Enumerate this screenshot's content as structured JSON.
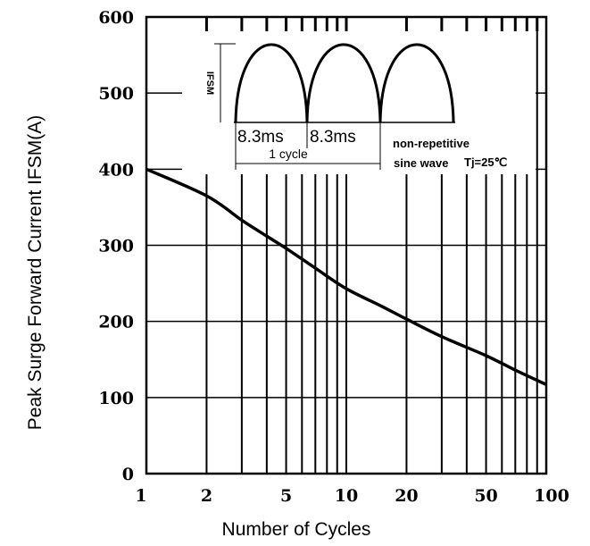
{
  "chart_data": {
    "type": "line",
    "title": "",
    "xlabel": "Number of Cycles",
    "ylabel": "Peak Surge Forward Current IFSM(A)",
    "x_scale": "log",
    "xlim": [
      1,
      100
    ],
    "ylim": [
      0,
      600
    ],
    "x_ticks": [
      1,
      2,
      5,
      10,
      20,
      50,
      100
    ],
    "x_tick_labels": [
      "1",
      "2",
      "5",
      "10",
      "20",
      "50",
      "100"
    ],
    "y_ticks": [
      0,
      100,
      200,
      300,
      400,
      500,
      600
    ],
    "y_tick_labels": [
      "0",
      "100",
      "200",
      "300",
      "400",
      "500",
      "600"
    ],
    "grid": true,
    "series": [
      {
        "x": [
          1,
          2,
          3,
          4,
          5,
          7,
          10,
          15,
          20,
          30,
          50,
          70,
          100
        ],
        "y": [
          400,
          365,
          333,
          312,
          296,
          270,
          243,
          220,
          203,
          180,
          155,
          136,
          117
        ]
      }
    ],
    "annotations": {
      "ifsm_label": "IFSM",
      "period_1": "8.3ms",
      "period_2": "8.3ms",
      "cycle_label": "1 cycle",
      "wave_line1": "non-repetitive",
      "wave_line2": "sine wave",
      "temp_label": "Tj=25℃"
    }
  }
}
